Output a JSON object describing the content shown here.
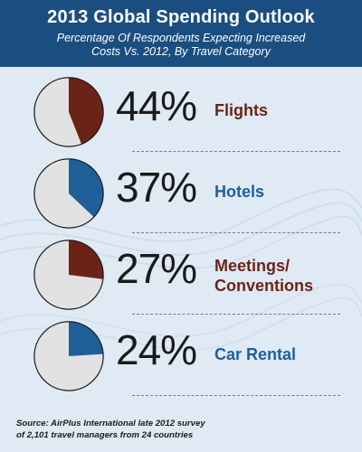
{
  "header": {
    "title": "2013 Global Spending Outlook",
    "subtitle_line1": "Percentage Of Respondents Expecting Increased",
    "subtitle_line2": "Costs Vs. 2012, By Travel Category"
  },
  "chart_data": {
    "type": "pie",
    "title": "2013 Global Spending Outlook",
    "subtitle": "Percentage Of Respondents Expecting Increased Costs Vs. 2012, By Travel Category",
    "remainder_color": "#e2e2e2",
    "items": [
      {
        "category": "Flights",
        "category_lines": [
          "Flights"
        ],
        "value": 44,
        "label": "44%",
        "color": "#6b2318"
      },
      {
        "category": "Hotels",
        "category_lines": [
          "Hotels"
        ],
        "value": 37,
        "label": "37%",
        "color": "#1e5f9a"
      },
      {
        "category": "Meetings/ Conventions",
        "category_lines": [
          "Meetings/",
          "Conventions"
        ],
        "value": 27,
        "label": "27%",
        "color": "#6b2318"
      },
      {
        "category": "Car Rental",
        "category_lines": [
          "Car Rental"
        ],
        "value": 24,
        "label": "24%",
        "color": "#1e5f9a"
      }
    ]
  },
  "footer": {
    "source_line1": "Source: AirPlus International late 2012 survey",
    "source_line2": "of 2,101 travel managers from 24 countries"
  }
}
